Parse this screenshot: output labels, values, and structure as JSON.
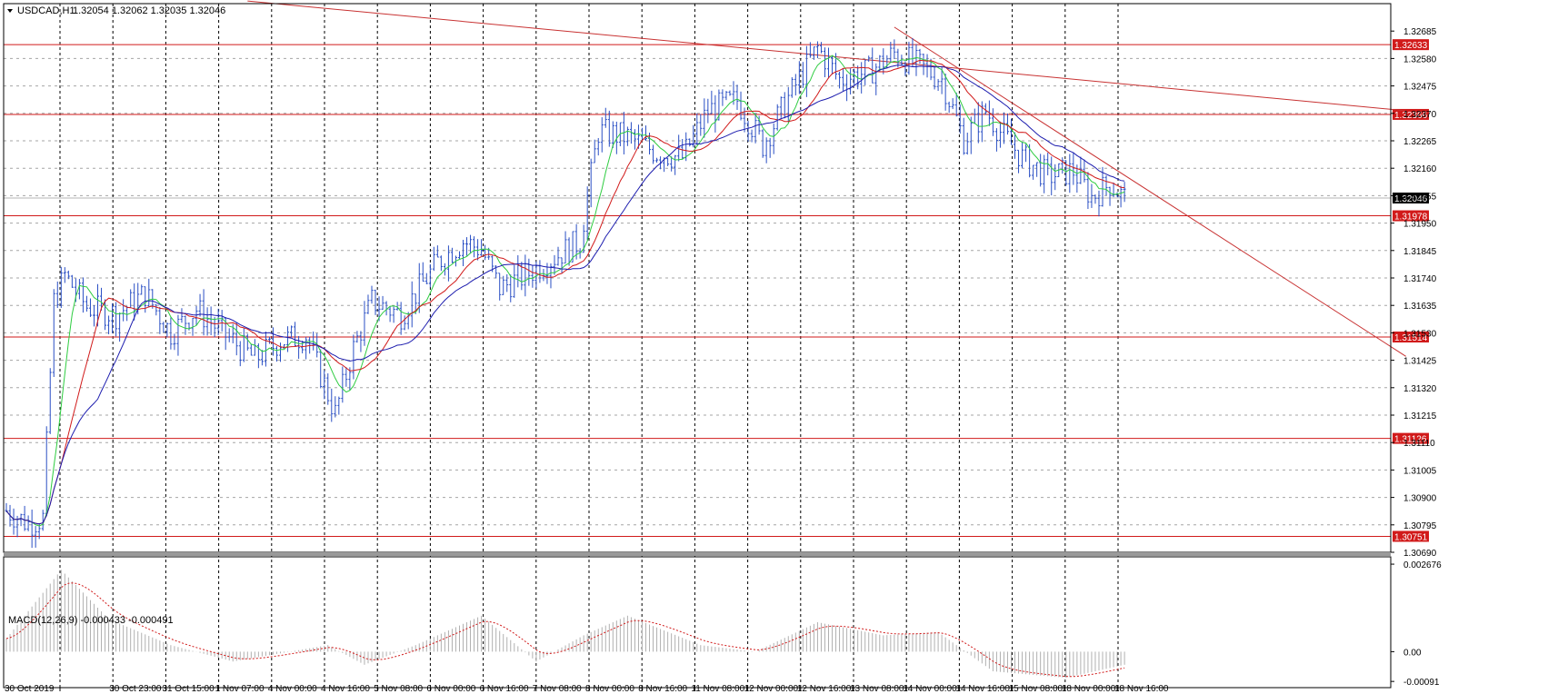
{
  "window": {
    "symbol_label": "USDCAD,H1",
    "ohlc": "1.32054 1.32062 1.32035 1.32046",
    "collapse_icon": "triangle-down-icon"
  },
  "colors": {
    "candle": "#2a4fc4",
    "ma_fast": "#2ecc40",
    "ma_mid": "#d11a1a",
    "ma_slow": "#1c1cae",
    "trendline": "#c83232",
    "level_line": "#d11a1a",
    "grid": "#000000",
    "macd_hist": "#b0b0b0",
    "macd_signal": "#d11a1a"
  },
  "chart_data": [
    {
      "type": "candlestick",
      "symbol": "USDCAD",
      "timeframe": "H1",
      "ylim": [
        1.3069,
        1.3279
      ],
      "y_ticks": [
        "1.32685",
        "1.32580",
        "1.32475",
        "1.32370",
        "1.32265",
        "1.32160",
        "1.32055",
        "1.31950",
        "1.31845",
        "1.31740",
        "1.31635",
        "1.31530",
        "1.31425",
        "1.31320",
        "1.31215",
        "1.31110",
        "1.31005",
        "1.30900",
        "1.30795",
        "1.30690"
      ],
      "x_ticks": [
        "30 Oct 2019",
        "30 Oct 23:00",
        "31 Oct 15:00",
        "1 Nov 07:00",
        "4 Nov 00:00",
        "4 Nov 16:00",
        "5 Nov 08:00",
        "6 Nov 00:00",
        "6 Nov 16:00",
        "7 Nov 08:00",
        "8 Nov 00:00",
        "8 Nov 16:00",
        "11 Nov 08:00",
        "12 Nov 00:00",
        "12 Nov 16:00",
        "13 Nov 08:00",
        "14 Nov 00:00",
        "14 Nov 16:00",
        "15 Nov 08:00",
        "18 Nov 00:00",
        "18 Nov 16:00"
      ],
      "current_price": "1.32046",
      "horizontal_levels": [
        "1.32633",
        "1.32366",
        "1.31978",
        "1.31514",
        "1.31126",
        "1.30751"
      ],
      "price_path": [
        {
          "bar": 0,
          "price": 1.3085
        },
        {
          "bar": 6,
          "price": 1.308
        },
        {
          "bar": 10,
          "price": 1.3082
        },
        {
          "bar": 13,
          "price": 1.3165
        },
        {
          "bar": 16,
          "price": 1.3175
        },
        {
          "bar": 22,
          "price": 1.3163
        },
        {
          "bar": 30,
          "price": 1.316
        },
        {
          "bar": 38,
          "price": 1.3168
        },
        {
          "bar": 45,
          "price": 1.3153
        },
        {
          "bar": 52,
          "price": 1.3162
        },
        {
          "bar": 60,
          "price": 1.3152
        },
        {
          "bar": 68,
          "price": 1.3143
        },
        {
          "bar": 75,
          "price": 1.315
        },
        {
          "bar": 82,
          "price": 1.3152
        },
        {
          "bar": 90,
          "price": 1.3122
        },
        {
          "bar": 95,
          "price": 1.3147
        },
        {
          "bar": 100,
          "price": 1.3165
        },
        {
          "bar": 108,
          "price": 1.316
        },
        {
          "bar": 118,
          "price": 1.318
        },
        {
          "bar": 125,
          "price": 1.3188
        },
        {
          "bar": 130,
          "price": 1.3185
        },
        {
          "bar": 135,
          "price": 1.317
        },
        {
          "bar": 142,
          "price": 1.3175
        },
        {
          "bar": 150,
          "price": 1.3182
        },
        {
          "bar": 157,
          "price": 1.3188
        },
        {
          "bar": 162,
          "price": 1.323
        },
        {
          "bar": 170,
          "price": 1.3228
        },
        {
          "bar": 178,
          "price": 1.3222
        },
        {
          "bar": 185,
          "price": 1.322
        },
        {
          "bar": 192,
          "price": 1.3238
        },
        {
          "bar": 200,
          "price": 1.3242
        },
        {
          "bar": 207,
          "price": 1.3225
        },
        {
          "bar": 214,
          "price": 1.3243
        },
        {
          "bar": 222,
          "price": 1.3262
        },
        {
          "bar": 228,
          "price": 1.325
        },
        {
          "bar": 236,
          "price": 1.3253
        },
        {
          "bar": 243,
          "price": 1.326
        },
        {
          "bar": 250,
          "price": 1.3255
        },
        {
          "bar": 256,
          "price": 1.325
        },
        {
          "bar": 262,
          "price": 1.3227
        },
        {
          "bar": 268,
          "price": 1.3238
        },
        {
          "bar": 272,
          "price": 1.323
        },
        {
          "bar": 278,
          "price": 1.322
        },
        {
          "bar": 285,
          "price": 1.3213
        },
        {
          "bar": 292,
          "price": 1.3215
        },
        {
          "bar": 297,
          "price": 1.3205
        },
        {
          "bar": 302,
          "price": 1.321
        },
        {
          "bar": 306,
          "price": 1.32046
        }
      ],
      "trendlines": [
        {
          "name": "long-down",
          "from": {
            "bar": 66,
            "price": 1.328
          },
          "to": {
            "bar": 383,
            "price": 1.3238
          }
        },
        {
          "name": "short-down",
          "from": {
            "bar": 243,
            "price": 1.327
          },
          "to": {
            "bar": 383,
            "price": 1.3144
          }
        }
      ]
    },
    {
      "type": "bar",
      "indicator": "MACD(12,26,9)",
      "label": "MACD(12,26,9) -0.000433 -0.000491",
      "y_ticks": [
        "0.002676",
        "0.00",
        "-0.00091"
      ],
      "ylim": [
        -0.0011,
        0.0029
      ],
      "hist_path": [
        {
          "bar": 0,
          "value": 0.0004
        },
        {
          "bar": 15,
          "value": 0.0025
        },
        {
          "bar": 28,
          "value": 0.001
        },
        {
          "bar": 45,
          "value": 0.0002
        },
        {
          "bar": 62,
          "value": -0.0003
        },
        {
          "bar": 88,
          "value": 0.0002
        },
        {
          "bar": 98,
          "value": -0.0004
        },
        {
          "bar": 112,
          "value": 0.0002
        },
        {
          "bar": 130,
          "value": 0.0011
        },
        {
          "bar": 145,
          "value": -0.0003
        },
        {
          "bar": 158,
          "value": 0.0005
        },
        {
          "bar": 170,
          "value": 0.0011
        },
        {
          "bar": 190,
          "value": 0.0002
        },
        {
          "bar": 205,
          "value": 0.0
        },
        {
          "bar": 222,
          "value": 0.0009
        },
        {
          "bar": 240,
          "value": 0.0005
        },
        {
          "bar": 255,
          "value": 0.0006
        },
        {
          "bar": 270,
          "value": -0.0006
        },
        {
          "bar": 290,
          "value": -0.0008
        },
        {
          "bar": 306,
          "value": -0.0004
        }
      ]
    }
  ]
}
